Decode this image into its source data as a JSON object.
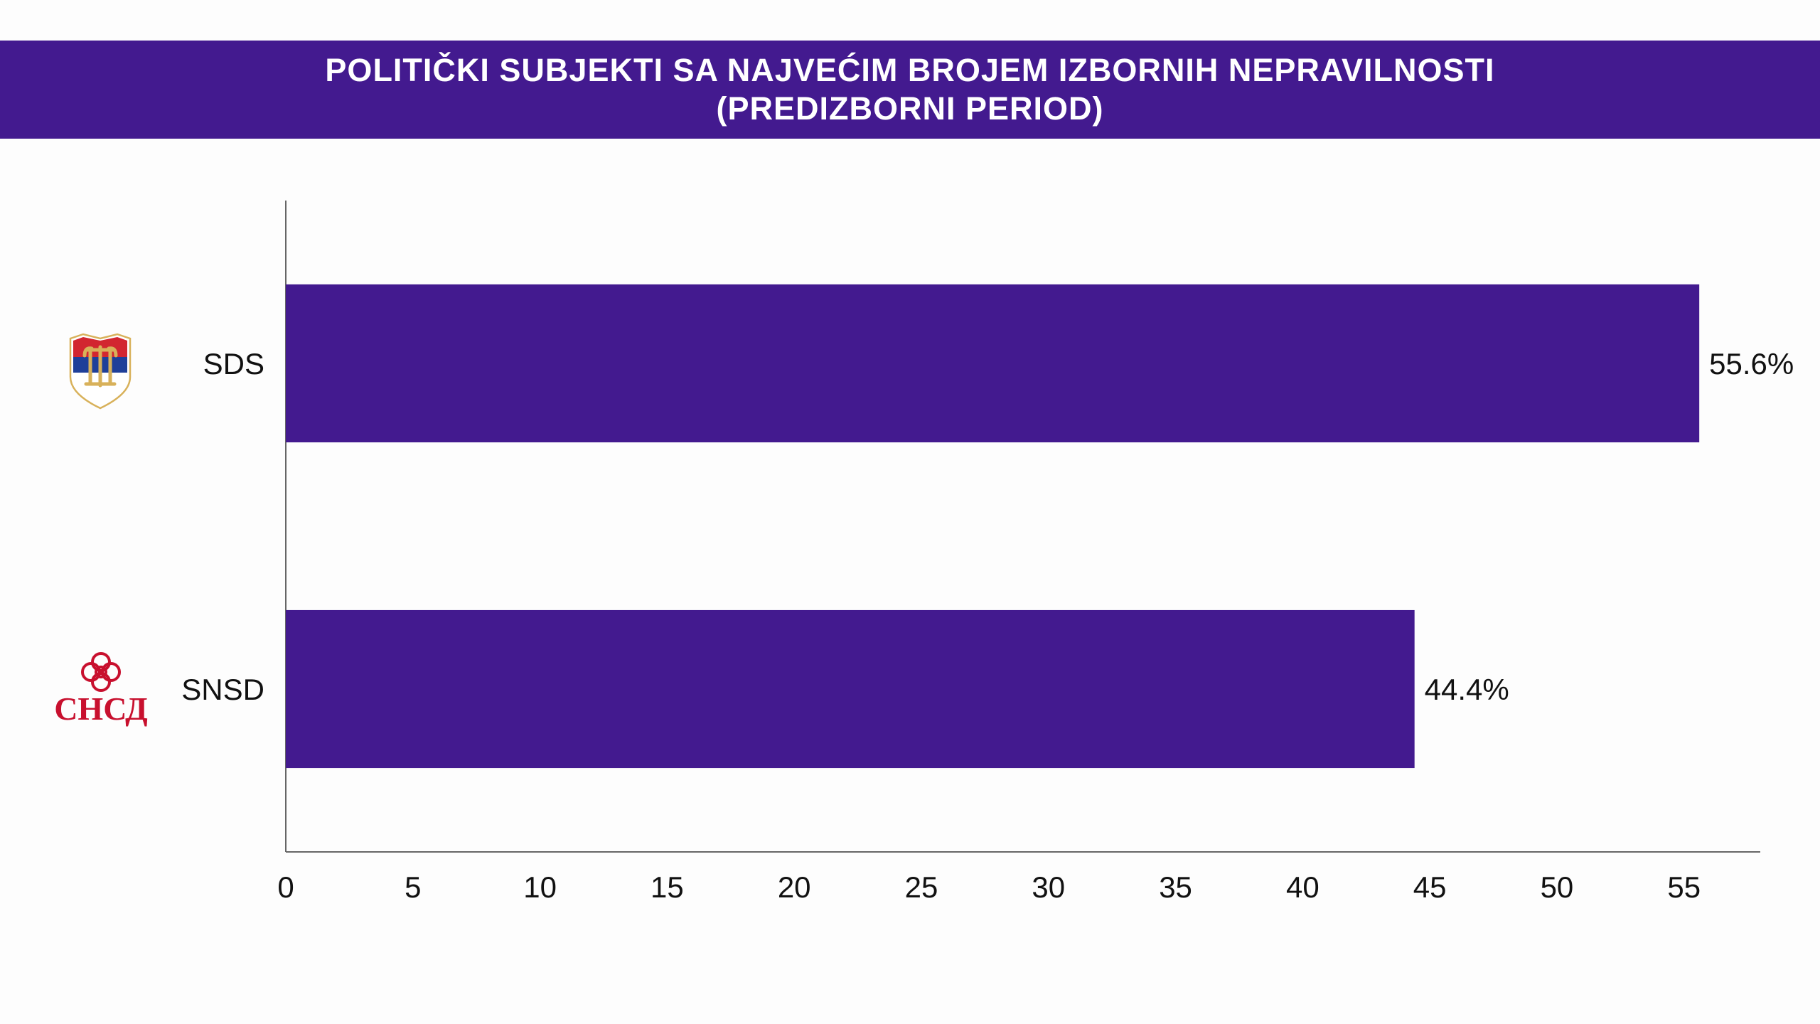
{
  "header": {
    "title_line1": "POLITIČKI SUBJEKTI SA NAJVEĆIM BROJEM IZBORNIH NEPRAVILNOSTI",
    "title_line2": "(PREDIZBORNI PERIOD)"
  },
  "colors": {
    "accent": "#431a8f",
    "bar": "#431a8f",
    "axis": "#666666",
    "sds_logo_red": "#d22630",
    "sds_logo_blue": "#1f3f99",
    "sds_logo_gold": "#d8b15a",
    "snsd_logo_red": "#c8102e"
  },
  "logos": {
    "sds": {
      "icon": "sds-shield-logo-icon"
    },
    "snsd": {
      "icon": "snsd-flower-logo-icon",
      "text": "СНСД"
    }
  },
  "chart_data": {
    "type": "bar",
    "orientation": "horizontal",
    "title": "POLITIČKI SUBJEKTI SA NAJVEĆIM BROJEM IZBORNIH NEPRAVILNOSTI (PREDIZBORNI PERIOD)",
    "categories": [
      "SDS",
      "SNSD"
    ],
    "values": [
      55.6,
      44.4
    ],
    "value_labels": [
      "55.6%",
      "44.4%"
    ],
    "xlim": [
      0,
      58
    ],
    "xticks": [
      "0",
      "5",
      "10",
      "15",
      "20",
      "25",
      "30",
      "35",
      "40",
      "45",
      "50",
      "55"
    ],
    "grid": false,
    "legend": "none"
  }
}
